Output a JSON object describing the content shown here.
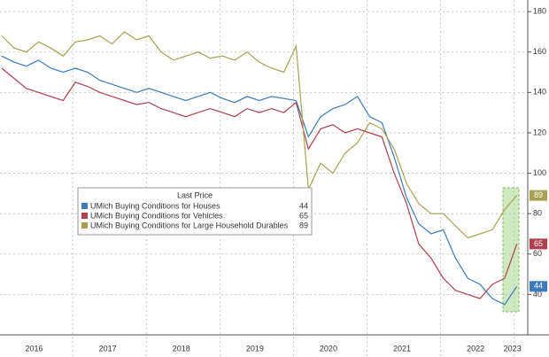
{
  "chart_data": {
    "type": "line",
    "legend_title": "Last Price",
    "categories": [
      null,
      null,
      null,
      "2016",
      null,
      null,
      null,
      null,
      null,
      "2017",
      null,
      null,
      null,
      null,
      null,
      "2018",
      null,
      null,
      null,
      null,
      null,
      "2019",
      null,
      null,
      null,
      null,
      null,
      "2020",
      null,
      null,
      null,
      null,
      null,
      "2021",
      null,
      null,
      null,
      null,
      null,
      "2022",
      null,
      null,
      "2023"
    ],
    "series": [
      {
        "name": "UMich Buying Conditions for Houses",
        "color": "#3b7cc0",
        "values": [
          158,
          155,
          153,
          156,
          152,
          150,
          152,
          150,
          146,
          144,
          142,
          140,
          142,
          140,
          138,
          136,
          138,
          140,
          137,
          135,
          138,
          136,
          138,
          137,
          136,
          118,
          128,
          132,
          134,
          138,
          128,
          125,
          108,
          88,
          75,
          70,
          72,
          58,
          48,
          45,
          38,
          35,
          44
        ]
      },
      {
        "name": "UMich Buying Conditions for Vehicles",
        "color": "#b0404e",
        "values": [
          152,
          147,
          142,
          140,
          138,
          136,
          145,
          143,
          140,
          138,
          136,
          134,
          135,
          132,
          130,
          128,
          130,
          132,
          130,
          128,
          132,
          130,
          132,
          130,
          135,
          112,
          122,
          124,
          120,
          122,
          120,
          118,
          100,
          85,
          65,
          58,
          48,
          42,
          40,
          38,
          45,
          48,
          65
        ]
      },
      {
        "name": "UMich Buying Conditions for Large Household Durables",
        "color": "#a9a14e",
        "values": [
          168,
          162,
          160,
          165,
          162,
          158,
          165,
          166,
          168,
          164,
          170,
          166,
          168,
          160,
          156,
          158,
          160,
          157,
          158,
          156,
          160,
          155,
          152,
          150,
          163,
          92,
          105,
          100,
          110,
          115,
          125,
          122,
          112,
          95,
          85,
          80,
          80,
          74,
          68,
          70,
          72,
          82,
          89
        ]
      }
    ],
    "ylim": [
      20,
      184
    ],
    "yticks": [
      40,
      60,
      80,
      100,
      120,
      140,
      160,
      180
    ],
    "grid": true,
    "legend": "center-left"
  }
}
